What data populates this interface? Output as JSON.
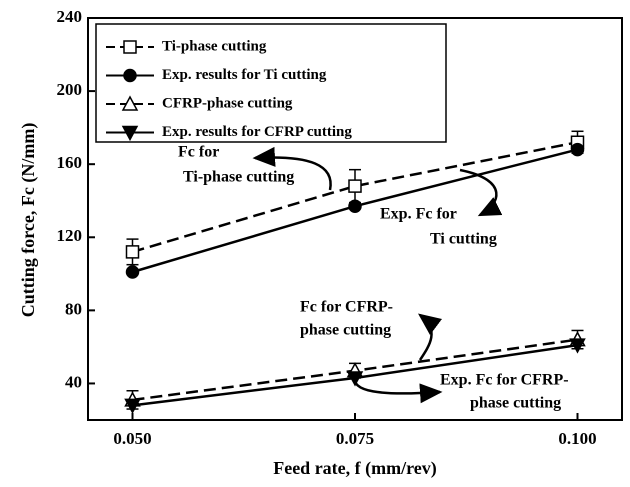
{
  "chart_data": {
    "type": "line",
    "x_label": "Feed rate, f (mm/rev)",
    "y_label": "Cutting force, Fc (N/mm)",
    "x": [
      0.05,
      0.075,
      0.1
    ],
    "xlim": [
      0.045,
      0.105
    ],
    "xticks": [
      {
        "value": 0.05,
        "label": "0.050"
      },
      {
        "value": 0.075,
        "label": "0.075"
      },
      {
        "value": 0.1,
        "label": "0.100"
      }
    ],
    "ylim": [
      20,
      240
    ],
    "yticks": [
      40,
      80,
      120,
      160,
      200,
      240
    ],
    "legend": "upper left",
    "series": [
      {
        "name": "Ti-phase cutting",
        "color": "#000000",
        "dash": true,
        "marker": "square-open",
        "values": [
          112,
          148,
          172
        ],
        "errors": [
          7,
          9,
          6
        ]
      },
      {
        "name": "Exp. results for Ti cutting",
        "color": "#000000",
        "dash": false,
        "marker": "circle",
        "values": [
          101,
          137,
          168
        ]
      },
      {
        "name": "CFRP-phase cutting",
        "color": "#000000",
        "dash": true,
        "marker": "triangle-open",
        "values": [
          31,
          47,
          64
        ],
        "errors": [
          5,
          4,
          5
        ]
      },
      {
        "name": "Exp. results for CFRP cutting",
        "color": "#000000",
        "dash": false,
        "marker": "triangle-down",
        "values": [
          28,
          43,
          61
        ]
      }
    ],
    "annotations": [
      [
        "Fc for",
        "Ti-phase cutting"
      ],
      [
        "Exp. Fc for",
        "Ti cutting"
      ],
      [
        "Fc for CFRP-",
        "phase cutting"
      ],
      [
        "Exp. Fc for CFRP-",
        "phase cutting"
      ]
    ]
  }
}
